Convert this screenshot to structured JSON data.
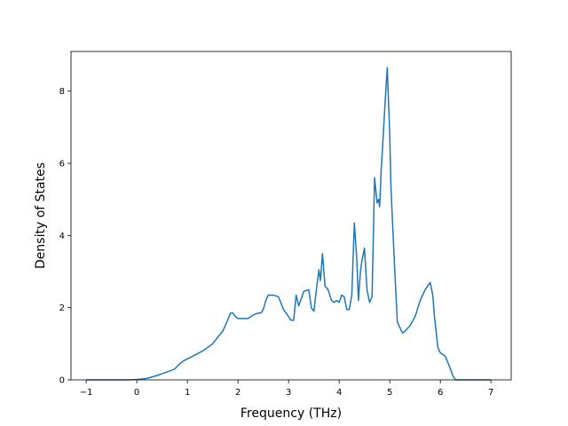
{
  "chart_data": {
    "type": "line",
    "title": "",
    "xlabel": "Frequency (THz)",
    "ylabel": "Density of States",
    "xlim": [
      -1.3,
      7.4
    ],
    "ylim": [
      0,
      9.1
    ],
    "xticks": [
      -1,
      0,
      1,
      2,
      3,
      4,
      5,
      6,
      7
    ],
    "yticks": [
      0,
      2,
      4,
      6,
      8
    ],
    "grid": false,
    "line_color": "#1f77b4",
    "series": [
      {
        "x": [
          -1.0,
          -0.5,
          -0.2,
          0.0,
          0.2,
          0.4,
          0.6,
          0.75,
          0.85,
          0.95,
          1.1,
          1.3,
          1.5,
          1.6,
          1.7,
          1.78,
          1.85,
          1.9,
          1.95,
          2.0,
          2.1,
          2.2,
          2.3,
          2.4,
          2.45,
          2.5,
          2.55,
          2.6,
          2.7,
          2.8,
          2.9,
          3.0,
          3.05,
          3.1,
          3.15,
          3.2,
          3.3,
          3.4,
          3.45,
          3.5,
          3.55,
          3.6,
          3.63,
          3.67,
          3.72,
          3.78,
          3.85,
          3.9,
          3.95,
          4.0,
          4.05,
          4.1,
          4.15,
          4.2,
          4.25,
          4.3,
          4.35,
          4.38,
          4.42,
          4.45,
          4.5,
          4.55,
          4.6,
          4.65,
          4.7,
          4.75,
          4.78,
          4.8,
          4.83,
          4.86,
          4.9,
          4.95,
          5.0,
          5.02,
          5.05,
          5.1,
          5.15,
          5.2,
          5.25,
          5.3,
          5.4,
          5.5,
          5.6,
          5.7,
          5.8,
          5.85,
          5.88,
          5.92,
          5.95,
          6.0,
          6.1,
          6.2,
          6.25,
          6.3,
          6.35,
          6.5,
          7.0
        ],
        "y": [
          0.0,
          0.0,
          0.0,
          0.01,
          0.04,
          0.12,
          0.22,
          0.3,
          0.45,
          0.55,
          0.65,
          0.8,
          1.0,
          1.18,
          1.35,
          1.6,
          1.85,
          1.85,
          1.75,
          1.7,
          1.7,
          1.7,
          1.8,
          1.85,
          1.85,
          1.95,
          2.2,
          2.35,
          2.35,
          2.3,
          1.95,
          1.75,
          1.65,
          1.65,
          2.35,
          2.05,
          2.45,
          2.5,
          2.0,
          1.9,
          2.5,
          3.05,
          2.75,
          3.5,
          2.6,
          2.5,
          2.2,
          2.15,
          2.2,
          2.15,
          2.35,
          2.3,
          1.95,
          1.95,
          2.35,
          4.35,
          3.3,
          2.2,
          3.0,
          3.3,
          3.65,
          2.5,
          2.15,
          2.3,
          5.6,
          4.9,
          5.0,
          4.8,
          5.8,
          6.5,
          7.5,
          8.65,
          6.8,
          5.5,
          4.5,
          3.0,
          1.6,
          1.45,
          1.3,
          1.35,
          1.5,
          1.75,
          2.2,
          2.5,
          2.7,
          2.35,
          1.8,
          1.3,
          0.9,
          0.75,
          0.65,
          0.3,
          0.1,
          0.0,
          0.0,
          0.0,
          0.0
        ]
      }
    ]
  }
}
